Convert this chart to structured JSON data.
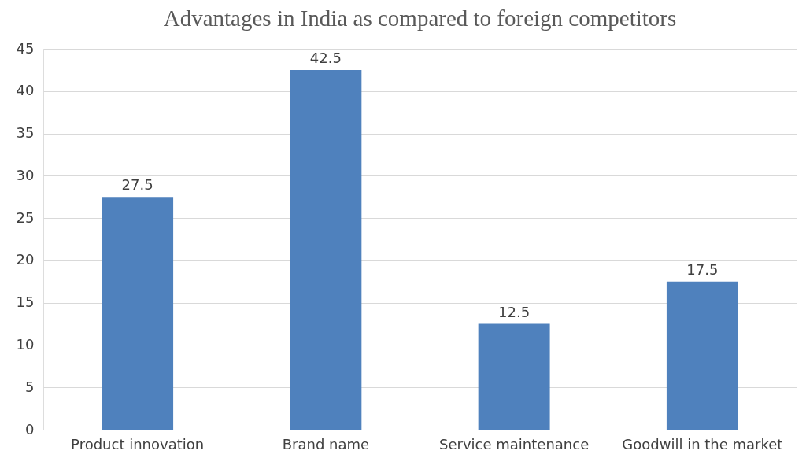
{
  "chart_data": {
    "type": "bar",
    "title": "Advantages in India as compared to foreign competitors",
    "categories": [
      "Product innovation",
      "Brand name",
      "Service maintenance",
      "Goodwill in the market"
    ],
    "values": [
      27.5,
      42.5,
      12.5,
      17.5
    ],
    "color": "#4f81bd",
    "ylim": [
      0,
      45
    ],
    "yticks": [
      0,
      5,
      10,
      15,
      20,
      25,
      30,
      35,
      40,
      45
    ],
    "grid": "y",
    "data_labels": true
  }
}
